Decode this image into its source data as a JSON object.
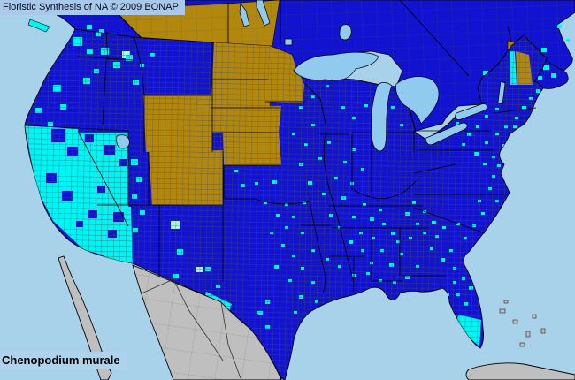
{
  "header": {
    "title": "Floristic Synthesis of NA © 2009 BONAP"
  },
  "footer": {
    "species": "Chenopodium murale"
  },
  "colors": {
    "ocean": "#A8D1EA",
    "lake": "#90CBEF",
    "state_present_blue": "#1213D0",
    "county_present_cyan": "#00F5F5",
    "county_rare_light_cyan": "#ABF7E3",
    "state_no_county_gold": "#B2870D",
    "absent_gray": "#BFBFBF",
    "county_line_gray": "#4A4F58",
    "state_border_black": "#000000",
    "mexico_line": "#333333",
    "title_bg": "#A8C9E9",
    "label_text": "#000000"
  },
  "map": {
    "county_markers": [
      [
        66,
        28,
        10
      ],
      [
        82,
        42,
        11
      ],
      [
        98,
        55,
        7
      ],
      [
        57,
        50,
        6
      ],
      [
        108,
        36,
        6
      ],
      [
        114,
        54,
        9
      ],
      [
        128,
        70,
        8
      ],
      [
        142,
        62,
        8
      ],
      [
        150,
        90,
        7
      ],
      [
        106,
        78,
        6
      ],
      [
        94,
        88,
        8
      ],
      [
        60,
        96,
        9
      ],
      [
        40,
        122,
        7
      ],
      [
        68,
        118,
        7
      ],
      [
        54,
        138,
        6
      ],
      [
        158,
        72,
        5
      ],
      [
        170,
        60,
        5
      ],
      [
        148,
        180,
        8
      ],
      [
        154,
        200,
        7
      ],
      [
        149,
        220,
        6
      ],
      [
        158,
        238,
        6
      ],
      [
        150,
        258,
        6
      ],
      [
        200,
        282,
        7
      ],
      [
        196,
        310,
        6
      ],
      [
        232,
        302,
        6
      ],
      [
        244,
        322,
        5
      ],
      [
        272,
        208,
        5
      ],
      [
        288,
        206,
        4
      ],
      [
        308,
        204,
        5
      ],
      [
        265,
        192,
        4
      ],
      [
        298,
        228,
        4
      ],
      [
        312,
        242,
        4
      ],
      [
        322,
        256,
        4
      ],
      [
        305,
        262,
        4
      ],
      [
        318,
        276,
        4
      ],
      [
        330,
        288,
        4
      ],
      [
        310,
        300,
        5
      ],
      [
        326,
        316,
        4
      ],
      [
        340,
        302,
        4
      ],
      [
        352,
        318,
        4
      ],
      [
        338,
        334,
        5
      ],
      [
        356,
        340,
        4
      ],
      [
        332,
        352,
        4
      ],
      [
        300,
        340,
        5
      ],
      [
        290,
        352,
        4
      ],
      [
        292,
        352,
        5
      ],
      [
        300,
        368,
        5
      ],
      [
        330,
        150,
        4
      ],
      [
        344,
        162,
        4
      ],
      [
        352,
        140,
        4
      ],
      [
        338,
        184,
        5
      ],
      [
        360,
        178,
        4
      ],
      [
        370,
        160,
        4
      ],
      [
        348,
        205,
        5
      ],
      [
        364,
        218,
        4
      ],
      [
        342,
        228,
        4
      ],
      [
        378,
        200,
        4
      ],
      [
        388,
        182,
        4
      ],
      [
        398,
        168,
        4
      ],
      [
        408,
        190,
        4
      ],
      [
        396,
        206,
        4
      ],
      [
        386,
        222,
        5
      ],
      [
        372,
        242,
        4
      ],
      [
        382,
        256,
        4
      ],
      [
        398,
        244,
        4
      ],
      [
        410,
        230,
        4
      ],
      [
        418,
        246,
        5
      ],
      [
        428,
        236,
        4
      ],
      [
        406,
        262,
        4
      ],
      [
        394,
        272,
        5
      ],
      [
        408,
        282,
        4
      ],
      [
        420,
        268,
        4
      ],
      [
        432,
        252,
        4
      ],
      [
        442,
        262,
        5
      ],
      [
        430,
        282,
        4
      ],
      [
        418,
        296,
        4
      ],
      [
        440,
        298,
        5
      ],
      [
        452,
        286,
        4
      ],
      [
        448,
        272,
        4
      ],
      [
        462,
        268,
        4
      ],
      [
        470,
        252,
        4
      ],
      [
        458,
        240,
        5
      ],
      [
        466,
        228,
        4
      ],
      [
        478,
        238,
        4
      ],
      [
        488,
        250,
        5
      ],
      [
        478,
        262,
        4
      ],
      [
        492,
        266,
        4
      ],
      [
        500,
        256,
        4
      ],
      [
        486,
        280,
        4
      ],
      [
        498,
        292,
        5
      ],
      [
        508,
        282,
        4
      ],
      [
        512,
        302,
        4
      ],
      [
        522,
        314,
        4
      ],
      [
        530,
        324,
        5
      ],
      [
        516,
        332,
        4
      ],
      [
        470,
        300,
        4
      ],
      [
        458,
        312,
        5
      ],
      [
        444,
        318,
        4
      ],
      [
        428,
        316,
        4
      ],
      [
        414,
        308,
        4
      ],
      [
        398,
        310,
        5
      ],
      [
        382,
        300,
        4
      ],
      [
        368,
        292,
        4
      ],
      [
        352,
        282,
        4
      ],
      [
        340,
        262,
        4
      ],
      [
        330,
        244,
        4
      ],
      [
        322,
        230,
        4
      ],
      [
        338,
        120,
        4
      ],
      [
        352,
        108,
        4
      ],
      [
        368,
        96,
        4
      ],
      [
        386,
        120,
        4
      ],
      [
        398,
        132,
        4
      ],
      [
        412,
        118,
        4
      ],
      [
        428,
        130,
        5
      ],
      [
        442,
        120,
        4
      ],
      [
        436,
        98,
        4
      ],
      [
        452,
        140,
        4
      ],
      [
        466,
        132,
        4
      ],
      [
        482,
        142,
        5
      ],
      [
        494,
        130,
        4
      ],
      [
        505,
        148,
        4
      ],
      [
        515,
        138,
        4
      ],
      [
        470,
        96,
        4
      ],
      [
        488,
        84,
        4
      ],
      [
        456,
        70,
        4
      ],
      [
        327,
        44,
        5
      ],
      [
        528,
        150,
        5
      ],
      [
        538,
        142,
        4
      ],
      [
        522,
        162,
        4
      ],
      [
        536,
        172,
        5
      ],
      [
        546,
        184,
        4
      ],
      [
        556,
        176,
        4
      ],
      [
        548,
        160,
        4
      ],
      [
        560,
        150,
        4
      ],
      [
        570,
        142,
        4
      ],
      [
        580,
        141,
        5
      ],
      [
        582,
        132,
        4
      ],
      [
        590,
        120,
        5
      ],
      [
        598,
        110,
        4
      ],
      [
        606,
        101,
        5
      ],
      [
        560,
        122,
        4
      ],
      [
        548,
        130,
        4
      ],
      [
        568,
        163,
        4
      ],
      [
        562,
        186,
        4
      ],
      [
        556,
        198,
        4
      ],
      [
        552,
        212,
        4
      ],
      [
        560,
        226,
        4
      ],
      [
        544,
        240,
        4
      ],
      [
        534,
        254,
        4
      ],
      [
        524,
        268,
        4
      ],
      [
        516,
        252,
        4
      ],
      [
        540,
        226,
        4
      ],
      [
        512,
        318,
        4
      ],
      [
        524,
        342,
        5
      ],
      [
        518,
        400,
        4
      ],
      [
        528,
        401,
        3
      ],
      [
        504,
        332,
        4
      ]
    ],
    "pale_markers": [
      [
        193,
        250,
        10
      ],
      [
        138,
        58,
        9
      ],
      [
        222,
        302,
        7
      ]
    ],
    "canada_markers": [
      [
        98,
        28,
        6
      ],
      [
        112,
        33,
        5
      ],
      [
        128,
        38,
        4
      ],
      [
        546,
        80,
        6
      ],
      [
        554,
        87,
        5
      ],
      [
        561,
        93,
        4
      ],
      [
        604,
        62,
        7
      ],
      [
        614,
        73,
        7
      ],
      [
        623,
        83,
        6
      ],
      [
        608,
        86,
        5
      ],
      [
        612,
        54,
        6
      ],
      [
        630,
        28,
        5
      ],
      [
        640,
        44,
        4
      ],
      [
        570,
        100,
        5
      ]
    ],
    "blue_patches": [
      [
        58,
        146,
        16
      ],
      [
        76,
        166,
        12
      ],
      [
        52,
        196,
        12
      ],
      [
        70,
        216,
        12
      ],
      [
        96,
        152,
        10
      ],
      [
        118,
        164,
        12
      ],
      [
        100,
        238,
        10
      ],
      [
        128,
        240,
        12
      ],
      [
        122,
        260,
        10
      ],
      [
        86,
        250,
        8
      ],
      [
        110,
        210,
        9
      ],
      [
        135,
        180,
        9
      ]
    ]
  }
}
